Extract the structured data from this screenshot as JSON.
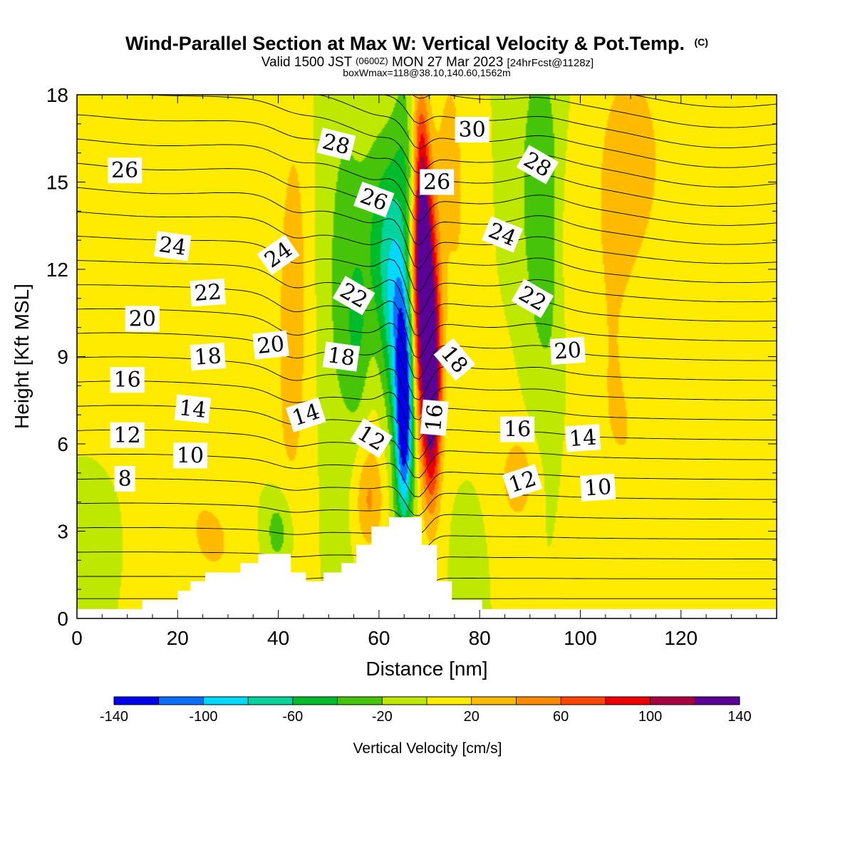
{
  "title": {
    "main": "Wind-Parallel Section at Max W: Vertical Velocity & Pot.Temp.",
    "main_unit": "(C)",
    "valid_prefix": "Valid 1500 JST",
    "valid_utc": "(0600Z)",
    "valid_date": "MON 27 Mar 2023",
    "forecast": "[24hrFcst@1128z]",
    "boxline": "boxWmax=118@38.10,140.60,1562m"
  },
  "chart_data": {
    "type": "heatmap",
    "description_free": true,
    "xlabel": "Distance [nm]",
    "ylabel": "Height [Kft MSL]",
    "xlim": [
      0,
      139
    ],
    "ylim": [
      0,
      18
    ],
    "x_ticks": [
      0,
      20,
      40,
      60,
      80,
      100,
      120
    ],
    "y_ticks": [
      0,
      3,
      6,
      9,
      12,
      15,
      18
    ],
    "colorbar": {
      "title": "Vertical Velocity [cm/s]",
      "bounds": [
        -140,
        -120,
        -100,
        -80,
        -60,
        -40,
        -20,
        0,
        20,
        40,
        60,
        80,
        100,
        120,
        140
      ],
      "labels": [
        "-140",
        "-100",
        "-60",
        "-20",
        "20",
        "60",
        "100",
        "140"
      ],
      "label_values": [
        -140,
        -100,
        -60,
        -20,
        20,
        60,
        100,
        140
      ],
      "colors": [
        "#0000ee",
        "#0a6eff",
        "#00d8ff",
        "#00d49c",
        "#00bb2a",
        "#45c40a",
        "#bfe800",
        "#ffeb00",
        "#ffbb00",
        "#ff8a00",
        "#ff4400",
        "#ee0000",
        "#a80040",
        "#5a0096"
      ]
    },
    "background_w": 0,
    "w_features": [
      {
        "x": 65,
        "y": 7.0,
        "sx": 1.3,
        "sy": 2.6,
        "w": -145
      },
      {
        "x": 63.5,
        "y": 10.5,
        "sx": 2.4,
        "sy": 2.6,
        "w": -70
      },
      {
        "x": 61,
        "y": 13.5,
        "sx": 3.2,
        "sy": 2.5,
        "w": -40
      },
      {
        "x": 69,
        "y": 11,
        "sx": 1.8,
        "sy": 3.0,
        "w": 145
      },
      {
        "x": 70.5,
        "y": 7.5,
        "sx": 1.3,
        "sy": 2.5,
        "w": 120
      },
      {
        "x": 68.5,
        "y": 14.5,
        "sx": 1.1,
        "sy": 2.2,
        "w": 90
      },
      {
        "x": 67.5,
        "y": 17.2,
        "sx": 1.4,
        "sy": 1.2,
        "w": 40
      },
      {
        "x": 66.5,
        "y": 16.5,
        "sx": 2.2,
        "sy": 2.0,
        "w": -40
      },
      {
        "x": 74,
        "y": 16.5,
        "sx": 2.2,
        "sy": 2.5,
        "w": 22
      },
      {
        "x": 76,
        "y": 12,
        "sx": 2.5,
        "sy": 3.0,
        "w": 15
      },
      {
        "x": 43,
        "y": 12,
        "sx": 2.0,
        "sy": 3.8,
        "w": 30
      },
      {
        "x": 42,
        "y": 6,
        "sx": 3.0,
        "sy": 4.0,
        "w": 15
      },
      {
        "x": 53,
        "y": 11.5,
        "sx": 2.8,
        "sy": 5.0,
        "w": -28
      },
      {
        "x": 56,
        "y": 9,
        "sx": 1.8,
        "sy": 2.5,
        "w": -30
      },
      {
        "x": 58,
        "y": 4.0,
        "sx": 2.0,
        "sy": 1.2,
        "w": 38
      },
      {
        "x": 57,
        "y": 6.5,
        "sx": 3.0,
        "sy": 2.0,
        "w": 18
      },
      {
        "x": 92,
        "y": 15,
        "sx": 3.0,
        "sy": 3.5,
        "w": -35
      },
      {
        "x": 94,
        "y": 10.5,
        "sx": 2.5,
        "sy": 3.0,
        "w": -15
      },
      {
        "x": 98,
        "y": 13,
        "sx": 2.5,
        "sy": 2.5,
        "w": 15
      },
      {
        "x": 110,
        "y": 16,
        "sx": 4.5,
        "sy": 2.5,
        "w": 30
      },
      {
        "x": 106,
        "y": 10,
        "sx": 5.0,
        "sy": 4.0,
        "w": 18
      },
      {
        "x": 125,
        "y": 13,
        "sx": 6.0,
        "sy": 4.5,
        "w": 12
      },
      {
        "x": 132,
        "y": 4.5,
        "sx": 5.0,
        "sy": 2.5,
        "w": 14
      },
      {
        "x": 112,
        "y": 5.5,
        "sx": 7.0,
        "sy": 2.2,
        "w": 12
      },
      {
        "x": 25,
        "y": 16,
        "sx": 3.0,
        "sy": 2.0,
        "w": 15
      },
      {
        "x": 22,
        "y": 6,
        "sx": 5.0,
        "sy": 4.0,
        "w": 14
      },
      {
        "x": 5,
        "y": 11,
        "sx": 4.0,
        "sy": 3.0,
        "w": 12
      },
      {
        "x": 30,
        "y": 2.5,
        "sx": 6.0,
        "sy": 1.8,
        "w": 18
      },
      {
        "x": 82,
        "y": 5,
        "sx": 4.0,
        "sy": 2.5,
        "w": 15
      },
      {
        "x": 88,
        "y": 4.8,
        "sx": 2.0,
        "sy": 1.0,
        "w": 30
      },
      {
        "x": 40,
        "y": 3.0,
        "sx": 2.0,
        "sy": 1.0,
        "w": -35
      },
      {
        "x": 79,
        "y": 3.0,
        "sx": 2.5,
        "sy": 2.0,
        "w": -15
      },
      {
        "x": 2.5,
        "y": 3.0,
        "sx": 2.5,
        "sy": 1.2,
        "w": -18
      },
      {
        "x": 37,
        "y": 3.0,
        "sx": 4.0,
        "sy": 1.5,
        "w": -8
      }
    ],
    "terrain_steps": [
      {
        "x0": 13,
        "x1": 20,
        "h": 0.63
      },
      {
        "x0": 20,
        "x1": 22.5,
        "h": 0.95
      },
      {
        "x0": 22.5,
        "x1": 25.5,
        "h": 1.28
      },
      {
        "x0": 25.5,
        "x1": 32.5,
        "h": 1.58
      },
      {
        "x0": 32.5,
        "x1": 36,
        "h": 1.9
      },
      {
        "x0": 36,
        "x1": 42.5,
        "h": 2.22
      },
      {
        "x0": 42.5,
        "x1": 45.5,
        "h": 1.58
      },
      {
        "x0": 45.5,
        "x1": 49,
        "h": 1.28
      },
      {
        "x0": 49,
        "x1": 52.5,
        "h": 1.58
      },
      {
        "x0": 52.5,
        "x1": 55.5,
        "h": 1.9
      },
      {
        "x0": 55.5,
        "x1": 58.5,
        "h": 2.53
      },
      {
        "x0": 58.5,
        "x1": 62,
        "h": 3.16
      },
      {
        "x0": 62,
        "x1": 68.5,
        "h": 3.48
      },
      {
        "x0": 68.5,
        "x1": 71.5,
        "h": 2.53
      },
      {
        "x0": 71.5,
        "x1": 74.5,
        "h": 1.28
      },
      {
        "x0": 74.5,
        "x1": 80.5,
        "h": 0.63
      },
      {
        "x0": 80.5,
        "x1": 82,
        "h": 0.32
      }
    ],
    "terrain_base": 0.32,
    "theta_contours": {
      "levels_min": 4,
      "levels_max": 33,
      "step": 1,
      "labels": [
        {
          "text": "26",
          "x": 9.5,
          "y": 15.4,
          "rot": 0
        },
        {
          "text": "24",
          "x": 19,
          "y": 12.8,
          "rot": 8
        },
        {
          "text": "22",
          "x": 26,
          "y": 11.2,
          "rot": -4
        },
        {
          "text": "20",
          "x": 13,
          "y": 10.3,
          "rot": 0
        },
        {
          "text": "18",
          "x": 26,
          "y": 9.0,
          "rot": -4
        },
        {
          "text": "16",
          "x": 10,
          "y": 8.2,
          "rot": 0
        },
        {
          "text": "14",
          "x": 23,
          "y": 7.2,
          "rot": 6
        },
        {
          "text": "12",
          "x": 10,
          "y": 6.3,
          "rot": 0
        },
        {
          "text": "10",
          "x": 22.5,
          "y": 5.6,
          "rot": 0
        },
        {
          "text": "8",
          "x": 9.5,
          "y": 4.8,
          "rot": 0
        },
        {
          "text": "28",
          "x": 51.5,
          "y": 16.3,
          "rot": 14
        },
        {
          "text": "26",
          "x": 59,
          "y": 14.4,
          "rot": 20
        },
        {
          "text": "24",
          "x": 40,
          "y": 12.5,
          "rot": -35
        },
        {
          "text": "22",
          "x": 55,
          "y": 11.1,
          "rot": 30
        },
        {
          "text": "20",
          "x": 38.5,
          "y": 9.4,
          "rot": -6
        },
        {
          "text": "18",
          "x": 52.5,
          "y": 9.0,
          "rot": 8
        },
        {
          "text": "14",
          "x": 45.5,
          "y": 7.0,
          "rot": -18
        },
        {
          "text": "12",
          "x": 58.5,
          "y": 6.2,
          "rot": 32
        },
        {
          "text": "26",
          "x": 71.5,
          "y": 15.0,
          "rot": 0
        },
        {
          "text": "30",
          "x": 78.5,
          "y": 16.8,
          "rot": 0
        },
        {
          "text": "16",
          "x": 71,
          "y": 6.9,
          "rot": -85
        },
        {
          "text": "18",
          "x": 75,
          "y": 8.9,
          "rot": 50
        },
        {
          "text": "28",
          "x": 91.5,
          "y": 15.6,
          "rot": 30
        },
        {
          "text": "24",
          "x": 84.5,
          "y": 13.2,
          "rot": 22
        },
        {
          "text": "22",
          "x": 90.5,
          "y": 11.0,
          "rot": 30
        },
        {
          "text": "20",
          "x": 97.5,
          "y": 9.2,
          "rot": -4
        },
        {
          "text": "16",
          "x": 87.5,
          "y": 6.5,
          "rot": 0
        },
        {
          "text": "14",
          "x": 100.5,
          "y": 6.2,
          "rot": -4
        },
        {
          "text": "12",
          "x": 88.5,
          "y": 4.7,
          "rot": -18
        },
        {
          "text": "10",
          "x": 103.5,
          "y": 4.5,
          "rot": -4
        }
      ]
    }
  }
}
